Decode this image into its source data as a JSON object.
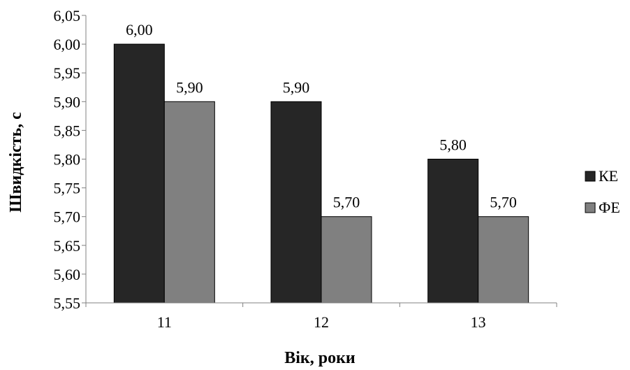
{
  "chart_data": {
    "type": "bar",
    "title": "",
    "xlabel": "Вік, роки",
    "ylabel": "Швидкість, с",
    "categories": [
      "11",
      "12",
      "13"
    ],
    "series": [
      {
        "name": "КЕ",
        "values": [
          6.0,
          5.9,
          5.8
        ],
        "labels": [
          "6,00",
          "5,90",
          "5,80"
        ],
        "color": "#262626"
      },
      {
        "name": "ФЕ",
        "values": [
          5.9,
          5.7,
          5.7
        ],
        "labels": [
          "5,90",
          "5,70",
          "5,70"
        ],
        "color": "#808080"
      }
    ],
    "ylim": [
      5.55,
      6.05
    ],
    "yticks": [
      5.55,
      5.6,
      5.65,
      5.7,
      5.75,
      5.8,
      5.85,
      5.9,
      5.95,
      6.0,
      6.05
    ],
    "ytick_labels": [
      "5,55",
      "5,60",
      "5,65",
      "5,70",
      "5,75",
      "5,80",
      "5,85",
      "5,90",
      "5,95",
      "6,00",
      "6,05"
    ],
    "grid": false,
    "legend_position": "right"
  }
}
